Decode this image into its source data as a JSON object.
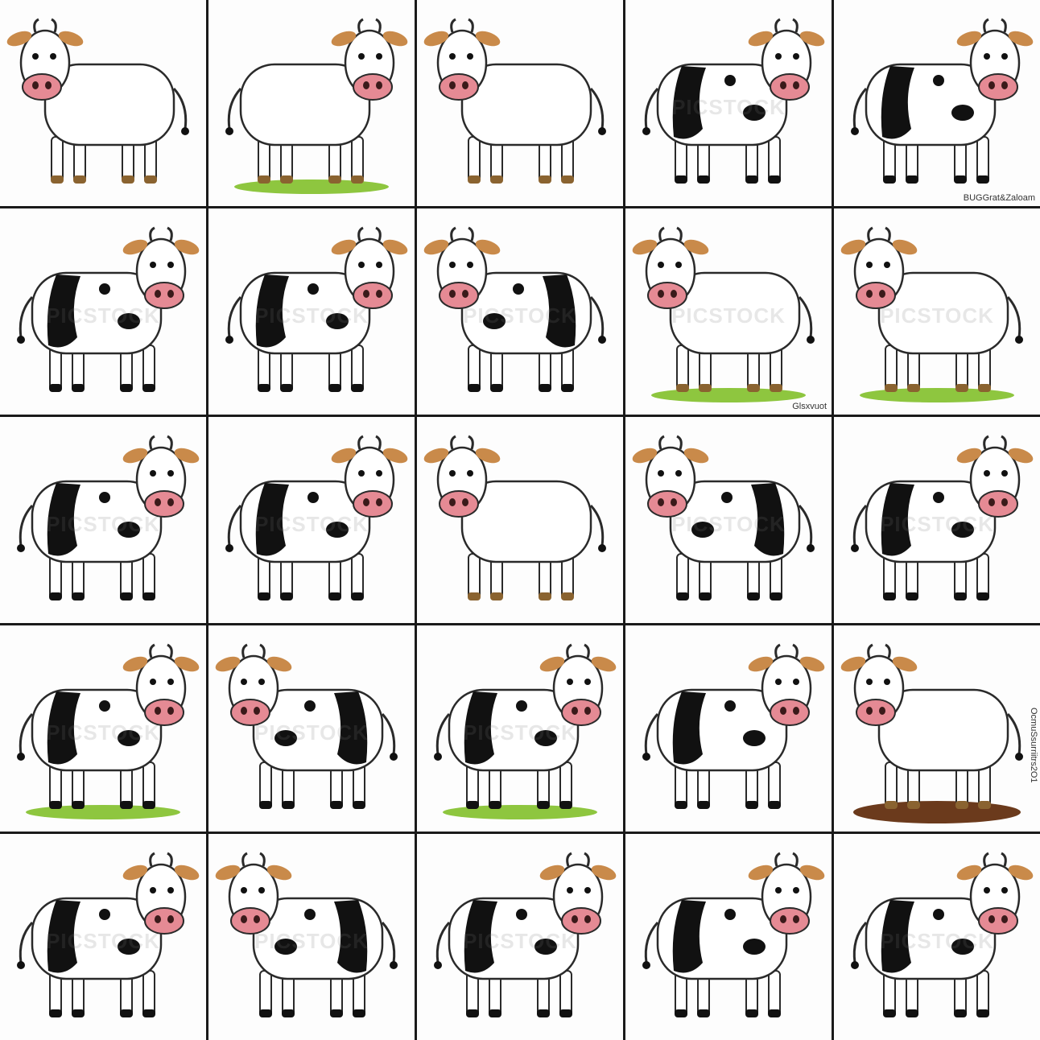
{
  "grid": {
    "rows": 5,
    "columns": 5,
    "divider_color": "#1a1a1a"
  },
  "watermark_text": "PICSTOCK",
  "colors": {
    "body": "#ffffff",
    "outline": "#2a2a2a",
    "spot": "#111111",
    "snout": "#e58a94",
    "ear": "#c98a4a",
    "hoof": "#8a6330",
    "grass": "#8ec63f"
  },
  "tiles": [
    {
      "style": "plain",
      "facing": "left",
      "ground": "none",
      "watermark": false
    },
    {
      "style": "plain",
      "facing": "right",
      "ground": "grass",
      "watermark": false
    },
    {
      "style": "plain",
      "facing": "left",
      "ground": "none",
      "watermark": false
    },
    {
      "style": "spotted",
      "facing": "right",
      "ground": "none",
      "watermark": true
    },
    {
      "style": "spotted",
      "facing": "right",
      "ground": "none",
      "watermark": false,
      "caption": "BUGGrat&Zaloam"
    },
    {
      "style": "spotted",
      "facing": "right",
      "ground": "none",
      "watermark": true
    },
    {
      "style": "spotted",
      "facing": "right",
      "ground": "none",
      "watermark": true
    },
    {
      "style": "spotted",
      "facing": "left",
      "ground": "none",
      "watermark": true
    },
    {
      "style": "plain",
      "facing": "left",
      "ground": "grass",
      "watermark": true,
      "caption": "Glsxvuot"
    },
    {
      "style": "plain",
      "facing": "left",
      "ground": "grass",
      "watermark": true
    },
    {
      "style": "spotted",
      "facing": "right",
      "ground": "none",
      "watermark": true
    },
    {
      "style": "spotted",
      "facing": "right",
      "ground": "none",
      "watermark": true
    },
    {
      "style": "plain",
      "facing": "left",
      "ground": "none",
      "watermark": false
    },
    {
      "style": "spotted",
      "facing": "left",
      "ground": "none",
      "watermark": true
    },
    {
      "style": "spotted",
      "facing": "right",
      "ground": "none",
      "watermark": true
    },
    {
      "style": "spotted",
      "facing": "right",
      "ground": "grass",
      "watermark": true
    },
    {
      "style": "spotted",
      "facing": "left",
      "ground": "none",
      "watermark": true
    },
    {
      "style": "spotted",
      "facing": "right",
      "ground": "grass",
      "watermark": true
    },
    {
      "style": "spotted",
      "facing": "right",
      "ground": "none",
      "watermark": false
    },
    {
      "style": "plain",
      "facing": "left",
      "ground": "mud",
      "watermark": false,
      "caption": "OcmuSsurriitrs2O1"
    },
    {
      "style": "spotted",
      "facing": "right",
      "ground": "none",
      "watermark": true
    },
    {
      "style": "spotted",
      "facing": "left",
      "ground": "none",
      "watermark": true
    },
    {
      "style": "spotted",
      "facing": "right",
      "ground": "none",
      "watermark": true
    },
    {
      "style": "spotted",
      "facing": "right",
      "ground": "none",
      "watermark": false
    },
    {
      "style": "spotted",
      "facing": "right",
      "ground": "none",
      "watermark": true
    }
  ]
}
